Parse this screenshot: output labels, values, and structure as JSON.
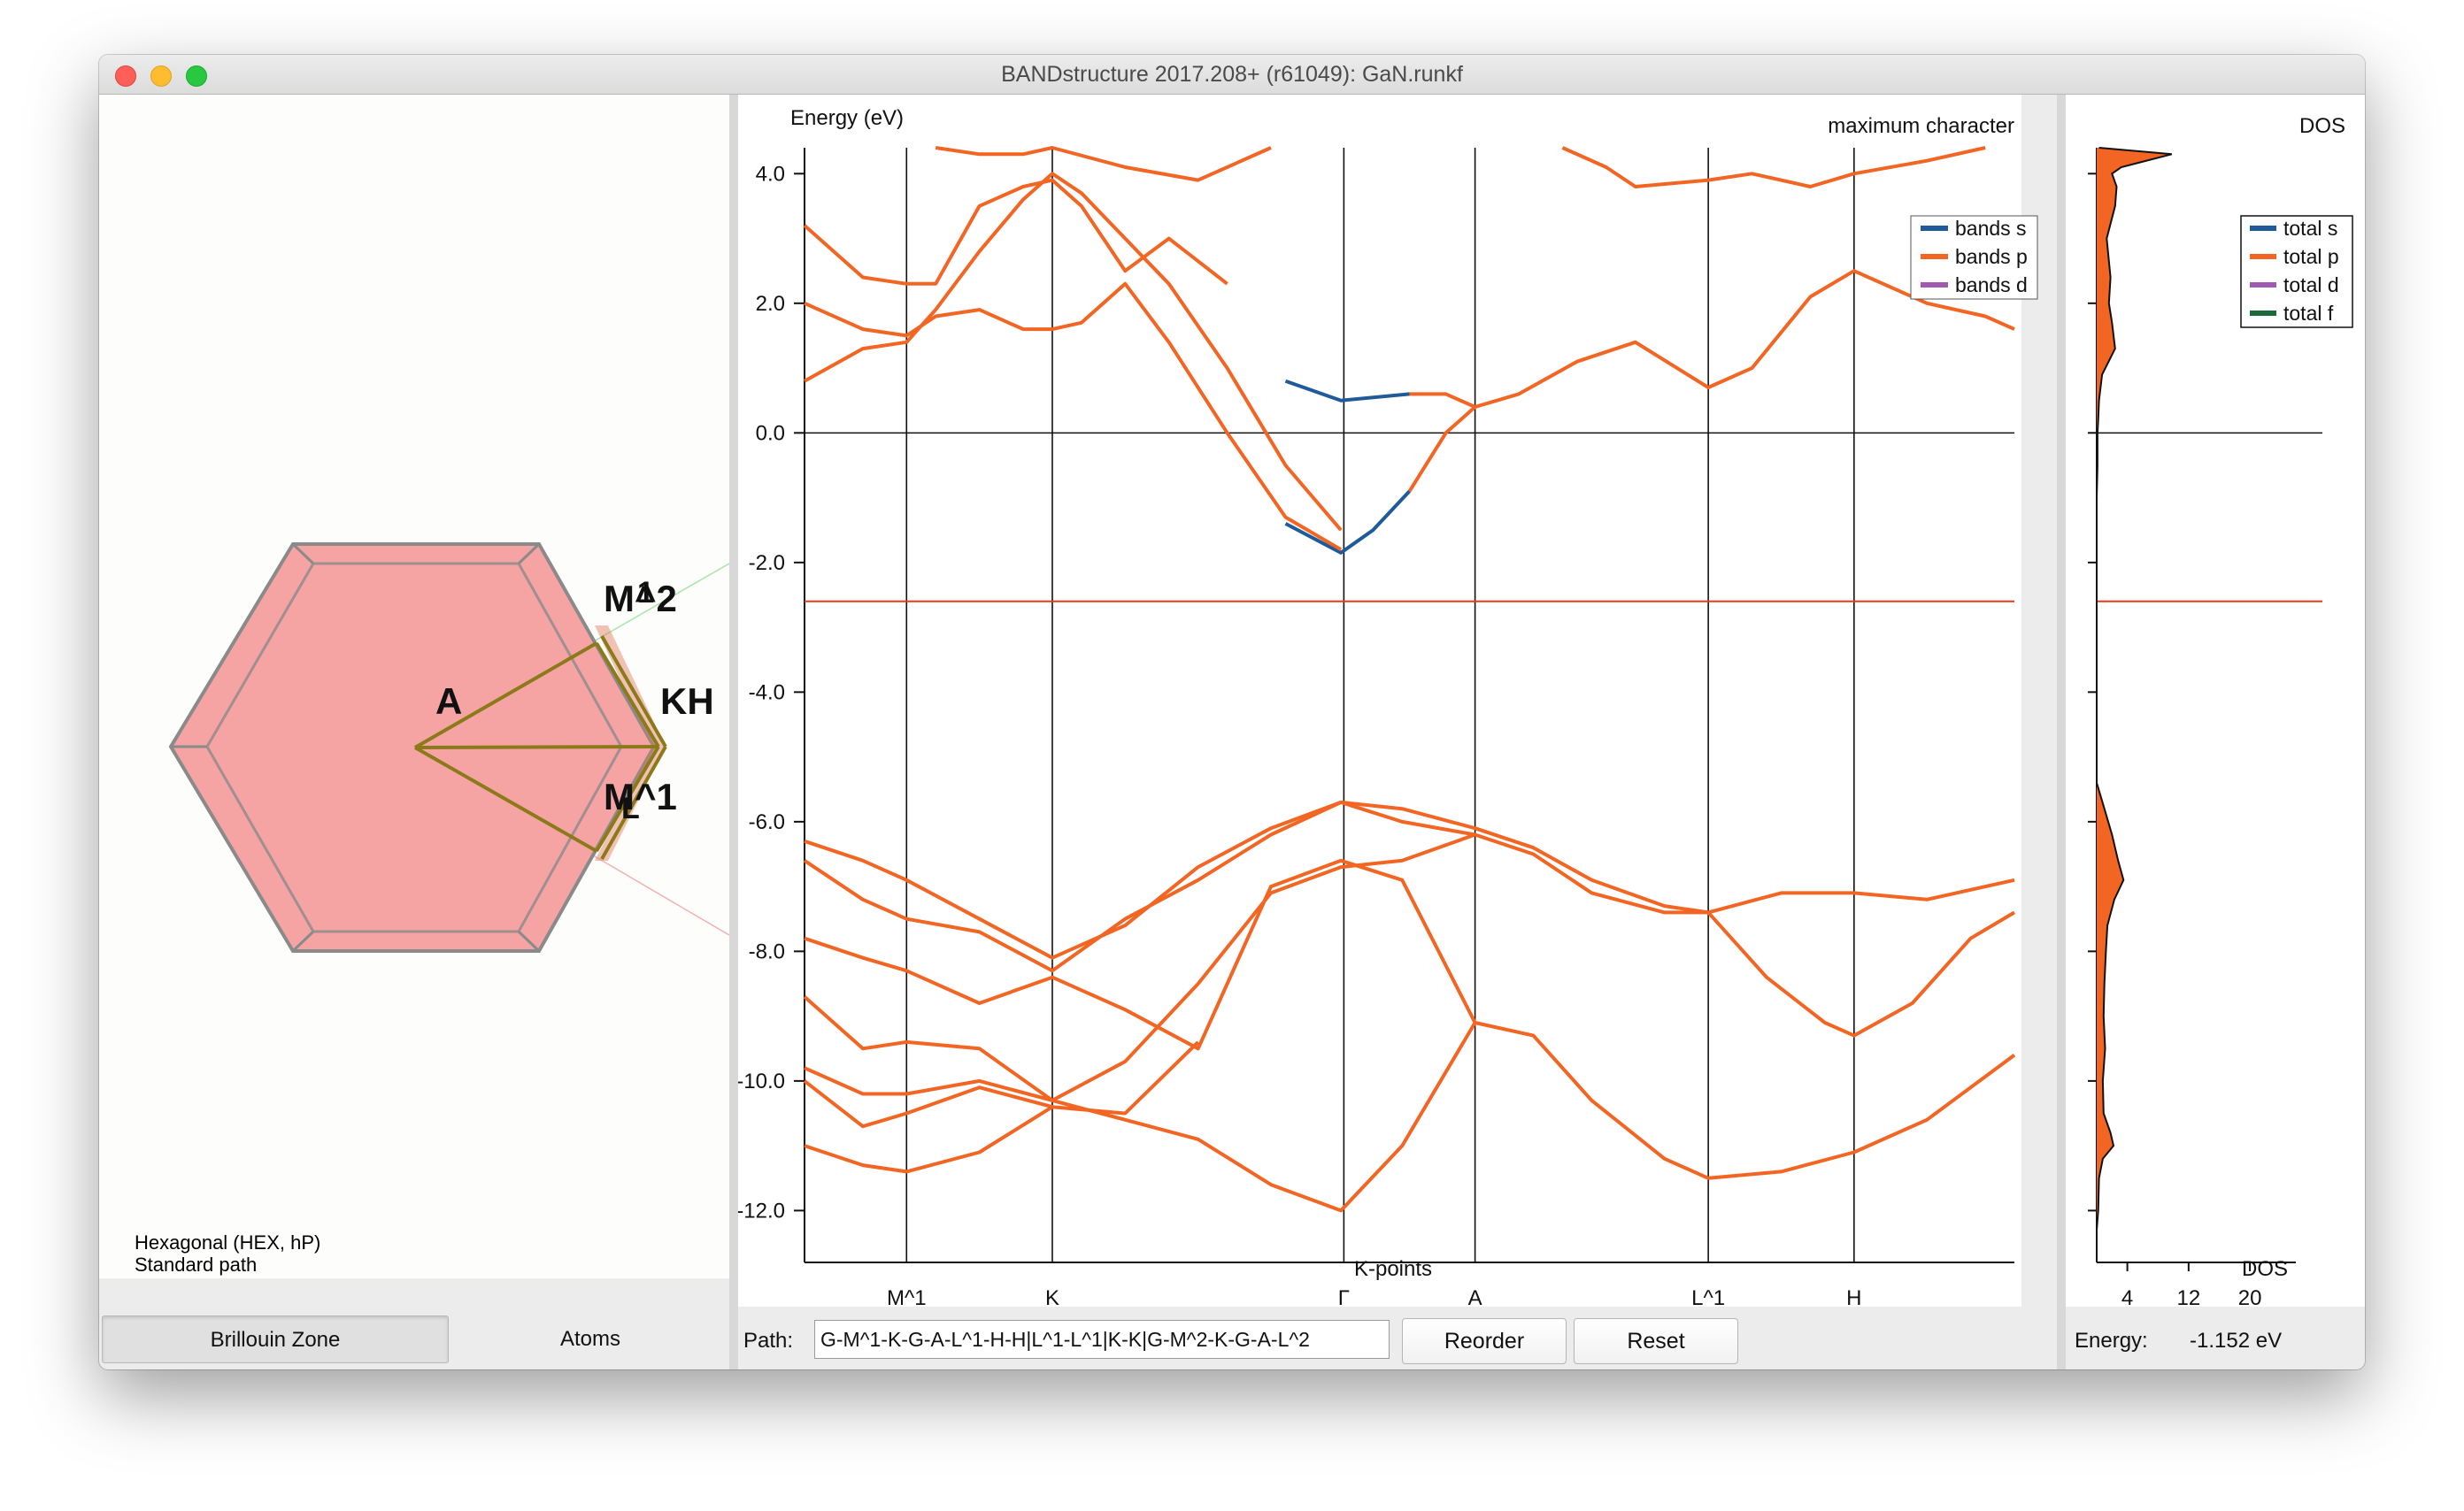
{
  "window": {
    "title": "BANDstructure 2017.208+ (r61049): GaN.runkf"
  },
  "bz_panel": {
    "labels": [
      "M^2",
      "1",
      "A",
      "KH",
      "M^1",
      "L"
    ],
    "lattice": "Hexagonal (HEX, hP)",
    "path_kind": "Standard path",
    "tabs": [
      "Brillouin Zone",
      "Atoms"
    ],
    "colors": {
      "hexagon_fill": "#f5a3a3",
      "hexagon_edge": "#8a8a8a",
      "path": "#8c7a1a"
    }
  },
  "band_plot": {
    "ylabel": "Energy (eV)",
    "header": "maximum character",
    "xlabel": "K-points",
    "yticks": [
      "4.0",
      "2.0",
      "0.0",
      "-2.0",
      "-4.0",
      "-6.0",
      "-8.0",
      "-10.0",
      "-12.0"
    ],
    "xticks": [
      "M^1",
      "K",
      "Γ",
      "A",
      "L^1",
      "H"
    ],
    "legend": [
      {
        "label": "bands s",
        "color": "#1f5a9a"
      },
      {
        "label": "bands p",
        "color": "#f26522"
      },
      {
        "label": "bands d",
        "color": "#a05ab0"
      }
    ],
    "fermi_level": 0.0,
    "selected_energy": -2.6
  },
  "dos_plot": {
    "title": "DOS",
    "xlabel": "DOS",
    "xticks": [
      "4",
      "12",
      "20"
    ],
    "legend": [
      {
        "label": "total s",
        "color": "#1f5a9a"
      },
      {
        "label": "total p",
        "color": "#f26522"
      },
      {
        "label": "total d",
        "color": "#a05ab0"
      },
      {
        "label": "total f",
        "color": "#1a6b3a"
      }
    ]
  },
  "chart_data": [
    {
      "type": "line",
      "xlabel": "K-points",
      "ylabel": "Energy (eV)",
      "ylim": [
        -12.8,
        4.4
      ],
      "x_ticks": [
        "M^1",
        "K",
        "Γ",
        "A",
        "L^1",
        "H"
      ],
      "x_tick_positions": [
        1.0,
        2.0,
        4.0,
        4.9,
        6.5,
        7.5
      ],
      "xlim": [
        0.3,
        8.6
      ],
      "legend": [
        "bands s",
        "bands p",
        "bands d"
      ],
      "legend_position": "top-right",
      "grid": false,
      "series": [
        {
          "name": "bands p",
          "x": [
            0.3,
            0.7,
            1.0,
            1.2,
            1.5,
            1.8,
            2.0,
            2.2,
            2.5,
            2.8,
            3.2,
            3.6,
            3.98
          ],
          "y": [
            0.8,
            1.3,
            1.4,
            1.9,
            2.8,
            3.6,
            4.0,
            3.7,
            3.0,
            2.3,
            1.0,
            -0.5,
            -1.5
          ]
        },
        {
          "name": "bands s",
          "x": [
            3.6,
            3.98,
            4.2,
            4.45
          ],
          "y": [
            -1.4,
            -1.85,
            -1.5,
            -0.9
          ]
        },
        {
          "name": "bands p",
          "x": [
            4.45,
            4.7,
            4.9,
            5.2,
            5.6,
            6.0,
            6.5,
            6.8,
            7.2,
            7.5,
            8.0,
            8.4,
            8.6
          ],
          "y": [
            -0.9,
            0.0,
            0.4,
            0.6,
            1.1,
            1.4,
            0.7,
            1.0,
            2.1,
            2.5,
            2.0,
            1.8,
            1.6
          ]
        },
        {
          "name": "bands p",
          "x": [
            0.3,
            0.7,
            1.0,
            1.2,
            1.5,
            1.8,
            2.0,
            2.2,
            2.5,
            2.8,
            3.2,
            3.6,
            3.98
          ],
          "y": [
            2.0,
            1.6,
            1.5,
            1.8,
            1.9,
            1.6,
            1.6,
            1.7,
            2.3,
            1.4,
            0.0,
            -1.3,
            -1.8
          ]
        },
        {
          "name": "bands p",
          "x": [
            0.3,
            0.7,
            1.0,
            1.2,
            1.5,
            1.8,
            2.0,
            2.2,
            2.5,
            2.8,
            3.2
          ],
          "y": [
            3.2,
            2.4,
            2.3,
            2.3,
            3.5,
            3.8,
            3.9,
            3.5,
            2.5,
            3.0,
            2.3
          ]
        },
        {
          "name": "bands s",
          "x": [
            3.6,
            3.98,
            4.45
          ],
          "y": [
            0.8,
            0.5,
            0.6
          ]
        },
        {
          "name": "bands p",
          "x": [
            4.45,
            4.7,
            4.9
          ],
          "y": [
            0.6,
            0.6,
            0.4
          ]
        },
        {
          "name": "bands p",
          "x": [
            0.3,
            0.7,
            1.0,
            1.5,
            2.0,
            2.5,
            3.0,
            3.5,
            3.98,
            4.4,
            4.9,
            5.3,
            5.7,
            6.2,
            6.5,
            7.0,
            7.5,
            8.0,
            8.6
          ],
          "y": [
            -6.3,
            -6.6,
            -6.9,
            -7.5,
            -8.1,
            -7.6,
            -6.7,
            -6.1,
            -5.7,
            -5.8,
            -6.1,
            -6.4,
            -6.9,
            -7.3,
            -7.4,
            -7.1,
            -7.1,
            -7.2,
            -6.9
          ]
        },
        {
          "name": "bands p",
          "x": [
            0.3,
            0.7,
            1.0,
            1.5,
            2.0,
            2.5,
            3.0,
            3.5,
            3.98,
            4.4,
            4.9,
            5.3,
            5.7,
            6.2,
            6.5,
            6.9,
            7.3,
            7.5,
            7.9,
            8.3,
            8.6
          ],
          "y": [
            -6.6,
            -7.2,
            -7.5,
            -7.7,
            -8.3,
            -7.5,
            -6.9,
            -6.2,
            -5.7,
            -6.0,
            -6.2,
            -6.5,
            -7.1,
            -7.4,
            -7.4,
            -8.4,
            -9.1,
            -9.3,
            -8.8,
            -7.8,
            -7.4
          ]
        },
        {
          "name": "bands p",
          "x": [
            0.3,
            0.7,
            1.0,
            1.5,
            2.0,
            2.5,
            3.0,
            3.5,
            3.98,
            4.4,
            4.9
          ],
          "y": [
            -7.8,
            -8.1,
            -8.3,
            -8.8,
            -8.4,
            -8.9,
            -9.5,
            -7.0,
            -6.6,
            -6.9,
            -9.1
          ]
        },
        {
          "name": "bands p",
          "x": [
            0.3,
            0.7,
            1.0,
            1.5,
            2.0,
            2.5,
            3.0,
            3.5,
            3.98,
            4.4,
            4.9
          ],
          "y": [
            -8.7,
            -9.5,
            -9.4,
            -9.5,
            -10.3,
            -9.7,
            -8.5,
            -7.1,
            -6.7,
            -6.6,
            -6.2
          ]
        },
        {
          "name": "bands p",
          "x": [
            0.3,
            0.7,
            1.0,
            1.5,
            2.0,
            2.5,
            3.0,
            3.5,
            3.98,
            4.4,
            4.9,
            5.3,
            5.7,
            6.2,
            6.5,
            7.0,
            7.5,
            8.0,
            8.6
          ],
          "y": [
            -9.8,
            -10.2,
            -10.2,
            -10.0,
            -10.3,
            -10.6,
            -10.9,
            -11.6,
            -12.0,
            -11.0,
            -9.1,
            -9.3,
            -10.3,
            -11.2,
            -11.5,
            -11.4,
            -11.1,
            -10.6,
            -9.6
          ]
        },
        {
          "name": "bands p",
          "x": [
            0.3,
            0.7,
            1.0,
            1.5,
            2.0,
            2.5,
            3.0
          ],
          "y": [
            -11.0,
            -11.3,
            -11.4,
            -11.1,
            -10.4,
            -10.5,
            -9.4
          ]
        },
        {
          "name": "bands p",
          "x": [
            0.3,
            0.7,
            1.0,
            1.5,
            2.0
          ],
          "y": [
            -10.0,
            -10.7,
            -10.5,
            -10.1,
            -10.4
          ]
        },
        {
          "name": "bands p",
          "x": [
            1.2,
            1.5,
            1.8,
            2.0,
            2.5,
            3.0,
            3.5
          ],
          "y": [
            4.4,
            4.3,
            4.3,
            4.4,
            4.1,
            3.9,
            4.4
          ]
        },
        {
          "name": "bands p",
          "x": [
            5.5,
            5.8,
            6.0,
            6.5,
            6.8,
            7.2,
            7.5,
            8.0,
            8.4
          ],
          "y": [
            4.4,
            4.1,
            3.8,
            3.9,
            4.0,
            3.8,
            4.0,
            4.2,
            4.4
          ]
        }
      ]
    },
    {
      "type": "area",
      "title": "DOS",
      "xlabel": "DOS",
      "ylabel": "",
      "ylim": [
        -12.8,
        4.4
      ],
      "xlim": [
        0,
        26
      ],
      "x_ticks": [
        4,
        12,
        20
      ],
      "legend": [
        "total s",
        "total p",
        "total d",
        "total f"
      ],
      "legend_position": "top-right",
      "series": [
        {
          "name": "total p",
          "energy": [
            4.4,
            4.3,
            4.1,
            4.0,
            3.8,
            3.5,
            3.0,
            2.4,
            2.0,
            1.7,
            1.3,
            0.9,
            0.5,
            0.2,
            0.0,
            -0.5,
            -1.0,
            -5.4,
            -5.8,
            -6.2,
            -6.6,
            -6.9,
            -7.2,
            -7.6,
            -8.0,
            -8.5,
            -9.0,
            -9.5,
            -10.0,
            -10.5,
            -10.8,
            -11.0,
            -11.2,
            -11.5,
            -12.0,
            -12.3
          ],
          "dos": [
            0.3,
            9.8,
            3.2,
            2.0,
            2.6,
            2.4,
            1.3,
            1.8,
            1.6,
            2.0,
            2.4,
            0.7,
            0.3,
            0.2,
            0.1,
            0.1,
            0.0,
            0.0,
            1.0,
            2.0,
            2.8,
            3.5,
            2.3,
            1.4,
            1.2,
            1.0,
            0.9,
            1.1,
            0.8,
            0.9,
            1.8,
            2.2,
            0.8,
            0.3,
            0.2,
            0.0
          ]
        }
      ]
    }
  ]
}
